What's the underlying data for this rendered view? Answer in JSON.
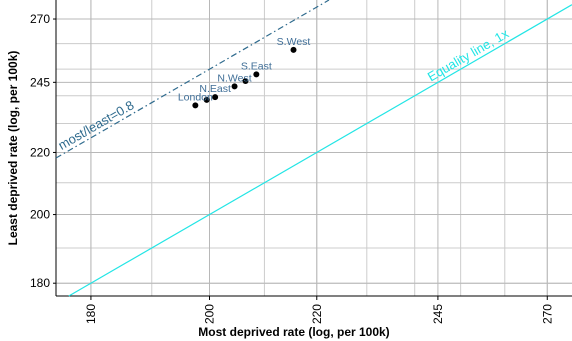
{
  "chart_data": {
    "type": "scatter",
    "title": "",
    "xlabel": "Most deprived rate (log, per 100k)",
    "ylabel": "Least deprived rate (log, per 100k)",
    "x_scale": "log",
    "y_scale": "log",
    "xlim": [
      174.5,
      276
    ],
    "ylim": [
      176.5,
      278
    ],
    "x_ticks": [
      180,
      200,
      220,
      245,
      270
    ],
    "y_ticks": [
      180,
      200,
      220,
      245,
      270
    ],
    "grid": true,
    "points": [
      {
        "label": "London",
        "x": 197.5,
        "y": 236.5
      },
      {
        "label": "",
        "x": 199.5,
        "y": 238.5
      },
      {
        "label": "N.East",
        "x": 201,
        "y": 239.5
      },
      {
        "label": "N.West",
        "x": 204.5,
        "y": 243.5
      },
      {
        "label": "",
        "x": 206.5,
        "y": 245.5
      },
      {
        "label": "S.East",
        "x": 208.5,
        "y": 248
      },
      {
        "label": "S.West",
        "x": 215.5,
        "y": 257.5
      }
    ],
    "reference_lines": [
      {
        "label": "Equality line, 1x",
        "ratio": 1,
        "color": "#22e5e5",
        "style": "solid"
      },
      {
        "label": "most/least=0.8",
        "ratio": 0.8,
        "color": "#2f6b8e",
        "style": "dashdot"
      }
    ],
    "colors": {
      "points": "#000000",
      "point_labels": "#3f6e97",
      "grid": "#cccccc",
      "equality": "#22e5e5",
      "ratio_line": "#2f6b8e"
    }
  }
}
